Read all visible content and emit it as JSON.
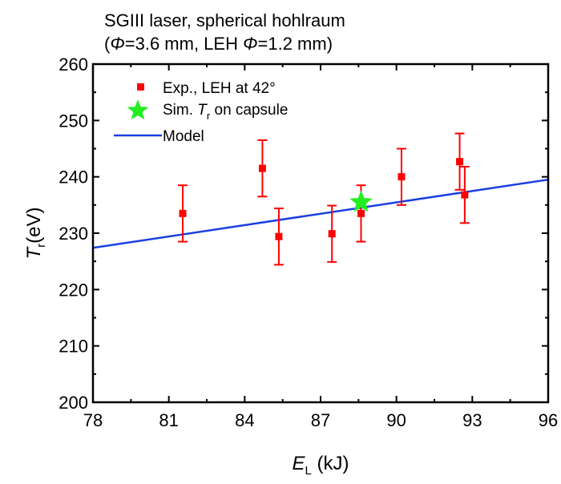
{
  "chart_data": {
    "type": "scatter",
    "title_line1": "SGIII laser, spherical hohlraum",
    "title_line2_parts": [
      "(",
      "Φ",
      "=3.6 mm, LEH ",
      "Φ",
      "=1.2 mm)"
    ],
    "xlabel": {
      "symbol": "E",
      "subscript": "L",
      "unit": " (kJ)"
    },
    "ylabel": {
      "symbol": "T",
      "subscript": "r",
      "unit": "(eV)"
    },
    "xlim": [
      78,
      96
    ],
    "ylim": [
      200,
      260
    ],
    "x_ticks": [
      78,
      81,
      84,
      87,
      90,
      93,
      96
    ],
    "x_minor_ticks": [
      79.5,
      82.5,
      85.5,
      88.5,
      91.5,
      94.5
    ],
    "y_ticks": [
      200,
      210,
      220,
      230,
      240,
      250,
      260
    ],
    "y_minor_ticks": [
      205,
      215,
      225,
      235,
      245,
      255
    ],
    "grid": false,
    "legend_position": "top-left",
    "colors": {
      "experiment": "#ff0000",
      "simulation": "#22ee22",
      "model": "#1a3fe0",
      "axis": "#000000"
    },
    "series": [
      {
        "name": "Exp., LEH at 42°",
        "kind": "points-with-errorbars",
        "x": [
          81.55,
          84.7,
          85.35,
          87.45,
          88.6,
          90.2,
          92.5,
          92.7
        ],
        "y": [
          233.5,
          241.5,
          229.4,
          229.9,
          233.5,
          240.0,
          242.7,
          236.8
        ],
        "yerr": [
          5,
          5,
          5,
          5,
          5,
          5,
          5,
          5
        ]
      },
      {
        "name_parts": [
          "Sim. ",
          "T",
          "r",
          " on capsule"
        ],
        "kind": "star",
        "x": [
          88.6
        ],
        "y": [
          235.5
        ]
      },
      {
        "name": "Model",
        "kind": "line",
        "x": [
          78,
          96
        ],
        "y": [
          227.4,
          239.5
        ]
      }
    ]
  }
}
